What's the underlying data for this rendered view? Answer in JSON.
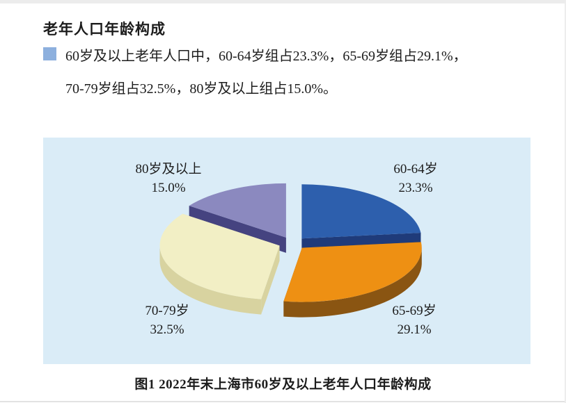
{
  "page": {
    "title": "老年人口年龄构成",
    "legend": {
      "lines": [
        "60岁及以上老年人口中，60-64岁组占23.3%，65-69岁组占29.1%，",
        "70-79岁组占32.5%，80岁及以上组占15.0%。"
      ]
    },
    "caption": "图1  2022年末上海市60岁及以上老年人口年龄构成"
  },
  "colors": {
    "panel_background": "#daecf7",
    "legend_bullet": "#8db0de",
    "text": "#1c1c1c"
  },
  "chart_data": {
    "type": "pie",
    "style": "3d-exploded",
    "title": "图1 2022年末上海市60岁及以上老年人口年龄构成",
    "unit": "%",
    "start_angle_deg": 0,
    "direction": "clockwise",
    "legend_position": "labels-around-pie",
    "slices": [
      {
        "label": "60-64岁",
        "value": 23.3,
        "value_label": "23.3%",
        "color": "#2d5fad",
        "side_color": "#1f3b7a"
      },
      {
        "label": "65-69岁",
        "value": 29.1,
        "value_label": "29.1%",
        "color": "#ee9013",
        "side_color": "#8a5512"
      },
      {
        "label": "70-79岁",
        "value": 32.5,
        "value_label": "32.5%",
        "color": "#f2efc5",
        "side_color": "#d8d3a0"
      },
      {
        "label": "80岁及以上",
        "value": 15.0,
        "value_label": "15.0%",
        "color": "#8b89bf",
        "side_color": "#454380"
      }
    ]
  }
}
